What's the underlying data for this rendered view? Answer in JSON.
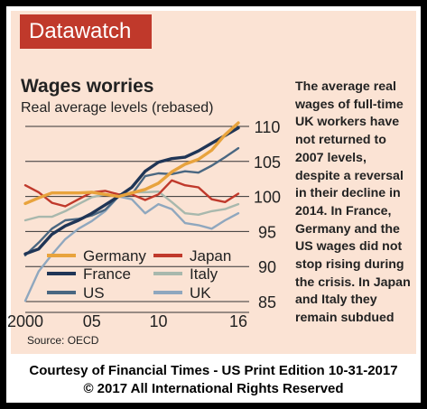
{
  "header": {
    "banner": "Datawatch"
  },
  "title": "Wages worries",
  "subtitle": "Real average levels (rebased)",
  "note": "The average real wages of full-time UK workers have not returned to 2007 levels, despite a reversal in their decline in 2014. In France, Germany and the US wages did not stop rising during the crisis. In Japan and Italy they remain subdued",
  "source": "Source: OECD",
  "footer": {
    "line1": "Courtesy of Financial Times - US Print Edition 10-31-2017",
    "line2": "© 2017 All International Rights Reserved"
  },
  "colors": {
    "banner": "#c0392b",
    "panel": "#fbe3d4",
    "Germany": "#e8a33d",
    "Japan": "#c0392b",
    "France": "#1f3556",
    "Italy": "#a8b8ad",
    "US": "#4a6781",
    "UK": "#8fa7be"
  },
  "chart_data": {
    "type": "line",
    "x_tick_labels": [
      "2000",
      "05",
      "10",
      "16"
    ],
    "x_ticks": [
      2000,
      2005,
      2010,
      2016
    ],
    "xlim": [
      2000,
      2016
    ],
    "ylim": [
      85,
      110
    ],
    "y_ticks": [
      85,
      90,
      95,
      100,
      105,
      110
    ],
    "grid": "horizontal",
    "legend": [
      [
        "Germany",
        "Japan"
      ],
      [
        "France",
        "Italy"
      ],
      [
        "US",
        "UK"
      ]
    ],
    "series": [
      {
        "name": "Germany",
        "x": [
          2000,
          2001,
          2002,
          2003,
          2004,
          2005,
          2006,
          2007,
          2008,
          2009,
          2010,
          2011,
          2012,
          2013,
          2014,
          2015,
          2016
        ],
        "values": [
          99.0,
          99.8,
          100.5,
          100.5,
          100.5,
          100.6,
          100.3,
          100.0,
          100.5,
          101.0,
          101.9,
          103.5,
          104.6,
          105.3,
          106.6,
          108.8,
          110.5
        ]
      },
      {
        "name": "Japan",
        "x": [
          2000,
          2001,
          2002,
          2003,
          2004,
          2005,
          2006,
          2007,
          2008,
          2009,
          2010,
          2011,
          2012,
          2013,
          2014,
          2015,
          2016
        ],
        "values": [
          101.6,
          100.6,
          99.1,
          98.6,
          99.6,
          100.6,
          100.8,
          100.3,
          100.3,
          99.5,
          100.3,
          102.3,
          101.6,
          101.3,
          99.6,
          99.2,
          100.4
        ]
      },
      {
        "name": "France",
        "x": [
          2000,
          2001,
          2002,
          2003,
          2004,
          2005,
          2006,
          2007,
          2008,
          2009,
          2010,
          2011,
          2012,
          2013,
          2014,
          2015,
          2016
        ],
        "values": [
          91.8,
          92.5,
          94.6,
          95.8,
          96.6,
          97.6,
          98.8,
          100.0,
          101.3,
          103.6,
          104.9,
          105.4,
          105.6,
          106.5,
          107.6,
          108.7,
          109.8
        ]
      },
      {
        "name": "Italy",
        "x": [
          2000,
          2001,
          2002,
          2003,
          2004,
          2005,
          2006,
          2007,
          2008,
          2009,
          2010,
          2011,
          2012,
          2013,
          2014,
          2015,
          2016
        ],
        "values": [
          96.6,
          97.1,
          97.1,
          97.9,
          98.9,
          99.9,
          100.3,
          100.0,
          100.6,
          100.6,
          100.7,
          99.2,
          97.6,
          97.4,
          97.9,
          98.2,
          98.9
        ]
      },
      {
        "name": "US",
        "x": [
          2000,
          2001,
          2002,
          2003,
          2004,
          2005,
          2006,
          2007,
          2008,
          2009,
          2010,
          2011,
          2012,
          2013,
          2014,
          2015,
          2016
        ],
        "values": [
          91.6,
          93.4,
          95.4,
          96.6,
          96.8,
          97.3,
          98.1,
          100.0,
          100.3,
          102.9,
          103.3,
          103.2,
          103.6,
          103.4,
          104.4,
          105.6,
          106.9
        ]
      },
      {
        "name": "UK",
        "x": [
          2000,
          2001,
          2002,
          2003,
          2004,
          2005,
          2006,
          2007,
          2008,
          2009,
          2010,
          2011,
          2012,
          2013,
          2014,
          2015,
          2016
        ],
        "values": [
          85.1,
          89.3,
          91.7,
          93.9,
          95.4,
          96.5,
          97.9,
          100.0,
          99.6,
          97.6,
          98.9,
          98.2,
          96.2,
          95.9,
          95.4,
          96.6,
          97.6
        ]
      }
    ]
  }
}
